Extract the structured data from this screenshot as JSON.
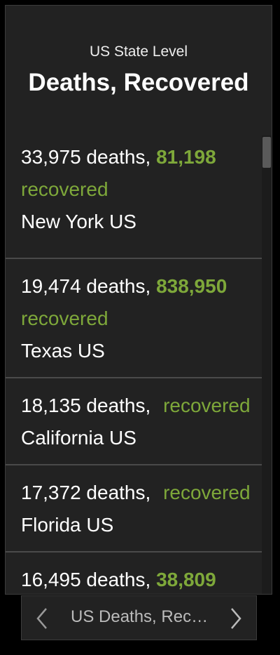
{
  "header": {
    "subtitle": "US State Level",
    "title": "Deaths, Recovered"
  },
  "items": [
    {
      "deaths": "33,975 deaths,",
      "recovered_value": "81,198",
      "recovered_label": "recovered",
      "location": "New York US"
    },
    {
      "deaths": "19,474 deaths,",
      "recovered_value": "838,950",
      "recovered_label": "recovered",
      "location": "Texas US"
    },
    {
      "deaths": "18,135 deaths,",
      "recovered_value": "",
      "recovered_label": "recovered",
      "location": "California US"
    },
    {
      "deaths": "17,372 deaths,",
      "recovered_value": "",
      "recovered_label": "recovered",
      "location": "Florida US"
    },
    {
      "deaths": "16,495 deaths,",
      "recovered_value": "38,809",
      "recovered_label": "",
      "location": ""
    }
  ],
  "footer": {
    "label": "US Deaths, Rec…",
    "prev_icon": "chevron-left-icon",
    "next_icon": "chevron-right-icon"
  },
  "colors": {
    "accent_green": "#7ea83a",
    "background": "#222222"
  }
}
